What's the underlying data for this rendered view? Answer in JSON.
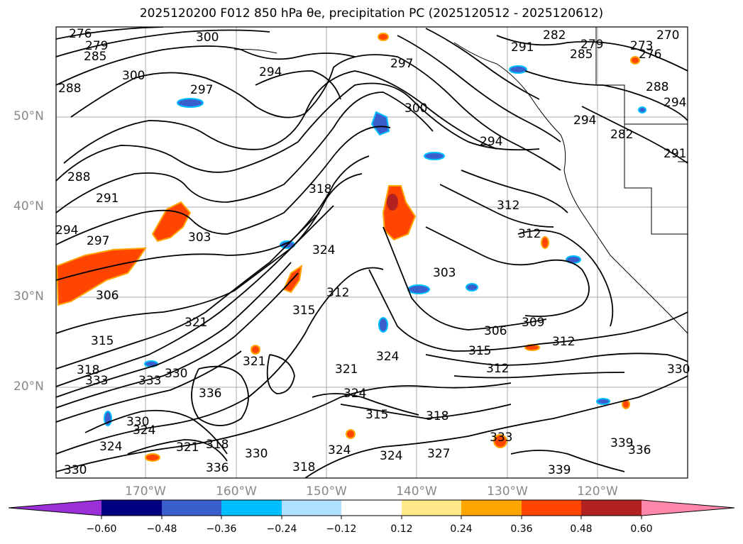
{
  "title": "2025120200 F012 850 hPa θe, precipitation PC (2025120512 - 2025120612)",
  "lat_labels": [
    "50°N",
    "40°N",
    "30°N",
    "20°N"
  ],
  "lon_labels": [
    "170°W",
    "160°W",
    "150°W",
    "140°W",
    "130°W",
    "120°W"
  ],
  "contour_labels": [
    "276",
    "279",
    "285",
    "300",
    "294",
    "297",
    "288",
    "291",
    "303",
    "306",
    "315",
    "318",
    "321",
    "324",
    "327",
    "330",
    "333",
    "336",
    "339",
    "309",
    "312",
    "282",
    "273",
    "270"
  ],
  "colorbar": {
    "ticks": [
      "−0.60",
      "−0.48",
      "−0.36",
      "−0.24",
      "−0.12",
      "0.12",
      "0.24",
      "0.36",
      "0.48",
      "0.60"
    ],
    "colors": [
      "#9b30d9",
      "#000080",
      "#3a5fcd",
      "#00bfff",
      "#b0e0ff",
      "#ffffff",
      "#ffe88a",
      "#ffa500",
      "#ff4500",
      "#b22222",
      "#ff88aa"
    ]
  }
}
